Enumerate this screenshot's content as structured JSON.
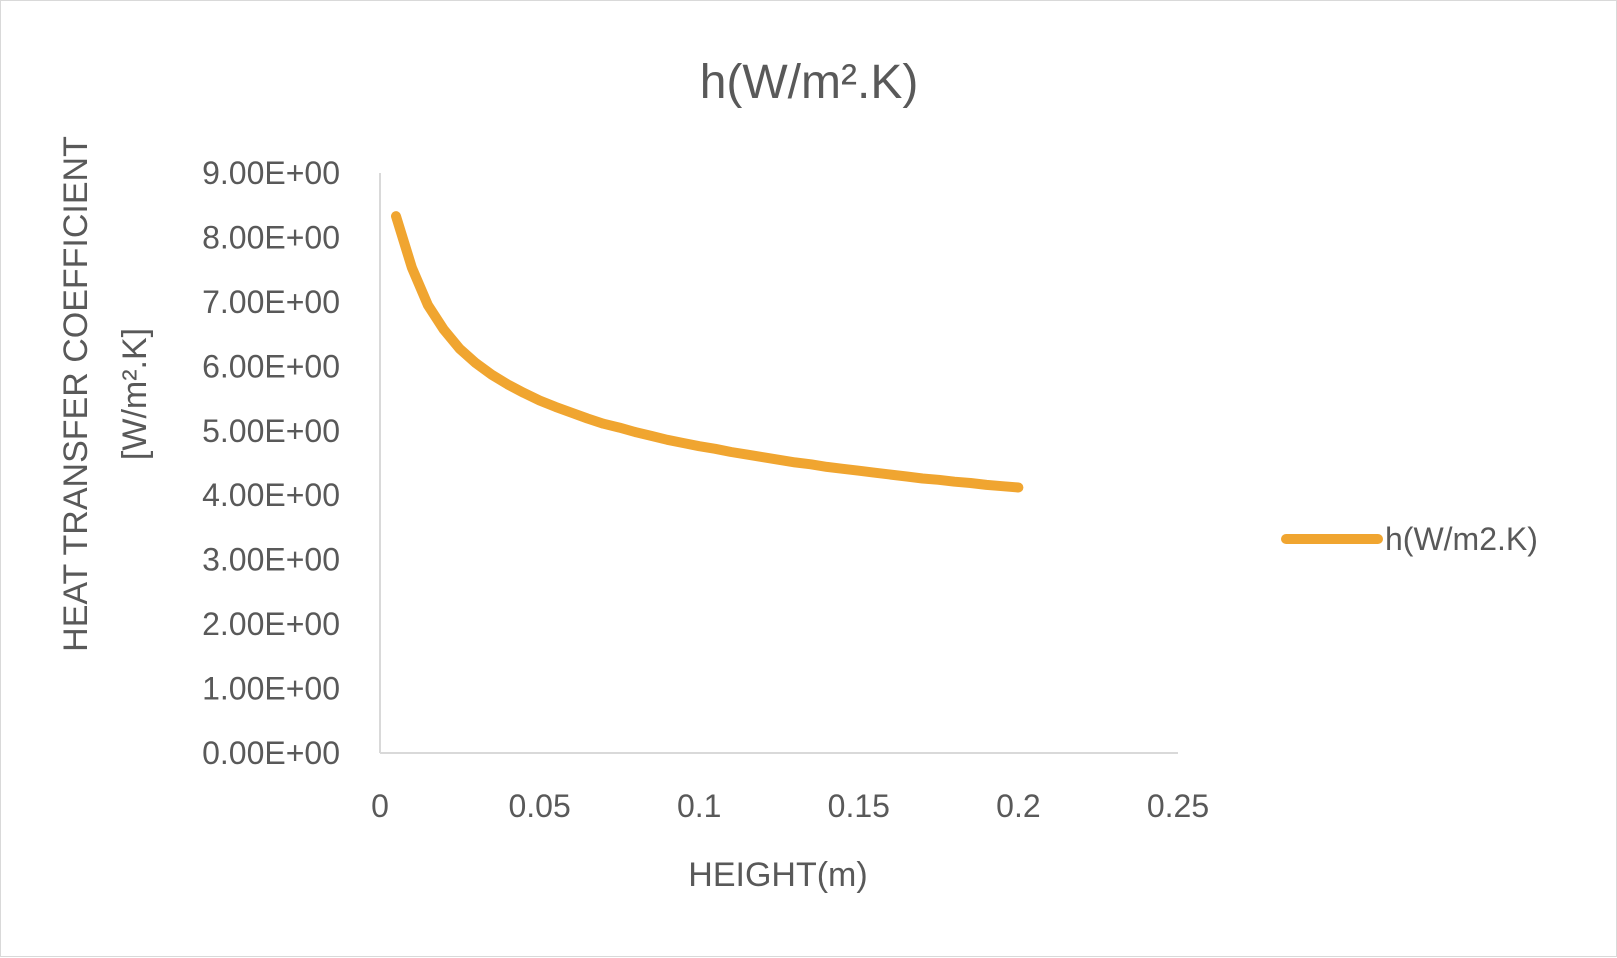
{
  "chart_data": {
    "type": "line",
    "title": "h(W/m².K)",
    "xlabel": "HEIGHT(m)",
    "ylabel_line1": "HEAT TRANSFER COEFFICIENT",
    "ylabel_line2": "[W/m².K]",
    "xlim": [
      0,
      0.25
    ],
    "ylim": [
      0,
      9
    ],
    "x_ticks": [
      0,
      0.05,
      0.1,
      0.15,
      0.2,
      0.25
    ],
    "x_tick_labels": [
      "0",
      "0.05",
      "0.1",
      "0.15",
      "0.2",
      "0.25"
    ],
    "y_ticks": [
      0,
      1,
      2,
      3,
      4,
      5,
      6,
      7,
      8,
      9
    ],
    "y_tick_labels": [
      "0.00E+00",
      "1.00E+00",
      "2.00E+00",
      "3.00E+00",
      "4.00E+00",
      "5.00E+00",
      "6.00E+00",
      "7.00E+00",
      "8.00E+00",
      "9.00E+00"
    ],
    "grid": false,
    "legend_position": "right",
    "series": [
      {
        "name": "h(W/m2.K)",
        "color": "#F0A530",
        "x": [
          0.005,
          0.01,
          0.015,
          0.02,
          0.025,
          0.03,
          0.035,
          0.04,
          0.045,
          0.05,
          0.055,
          0.06,
          0.065,
          0.07,
          0.075,
          0.08,
          0.085,
          0.09,
          0.095,
          0.1,
          0.105,
          0.11,
          0.115,
          0.12,
          0.125,
          0.13,
          0.135,
          0.14,
          0.145,
          0.15,
          0.155,
          0.16,
          0.165,
          0.17,
          0.175,
          0.18,
          0.185,
          0.19,
          0.195,
          0.2
        ],
        "y": [
          8.33,
          7.53,
          6.95,
          6.57,
          6.27,
          6.05,
          5.87,
          5.72,
          5.59,
          5.47,
          5.37,
          5.28,
          5.19,
          5.11,
          5.05,
          4.98,
          4.92,
          4.86,
          4.81,
          4.76,
          4.72,
          4.67,
          4.63,
          4.59,
          4.55,
          4.51,
          4.48,
          4.44,
          4.41,
          4.38,
          4.35,
          4.32,
          4.29,
          4.26,
          4.24,
          4.21,
          4.19,
          4.16,
          4.14,
          4.12
        ]
      }
    ]
  }
}
